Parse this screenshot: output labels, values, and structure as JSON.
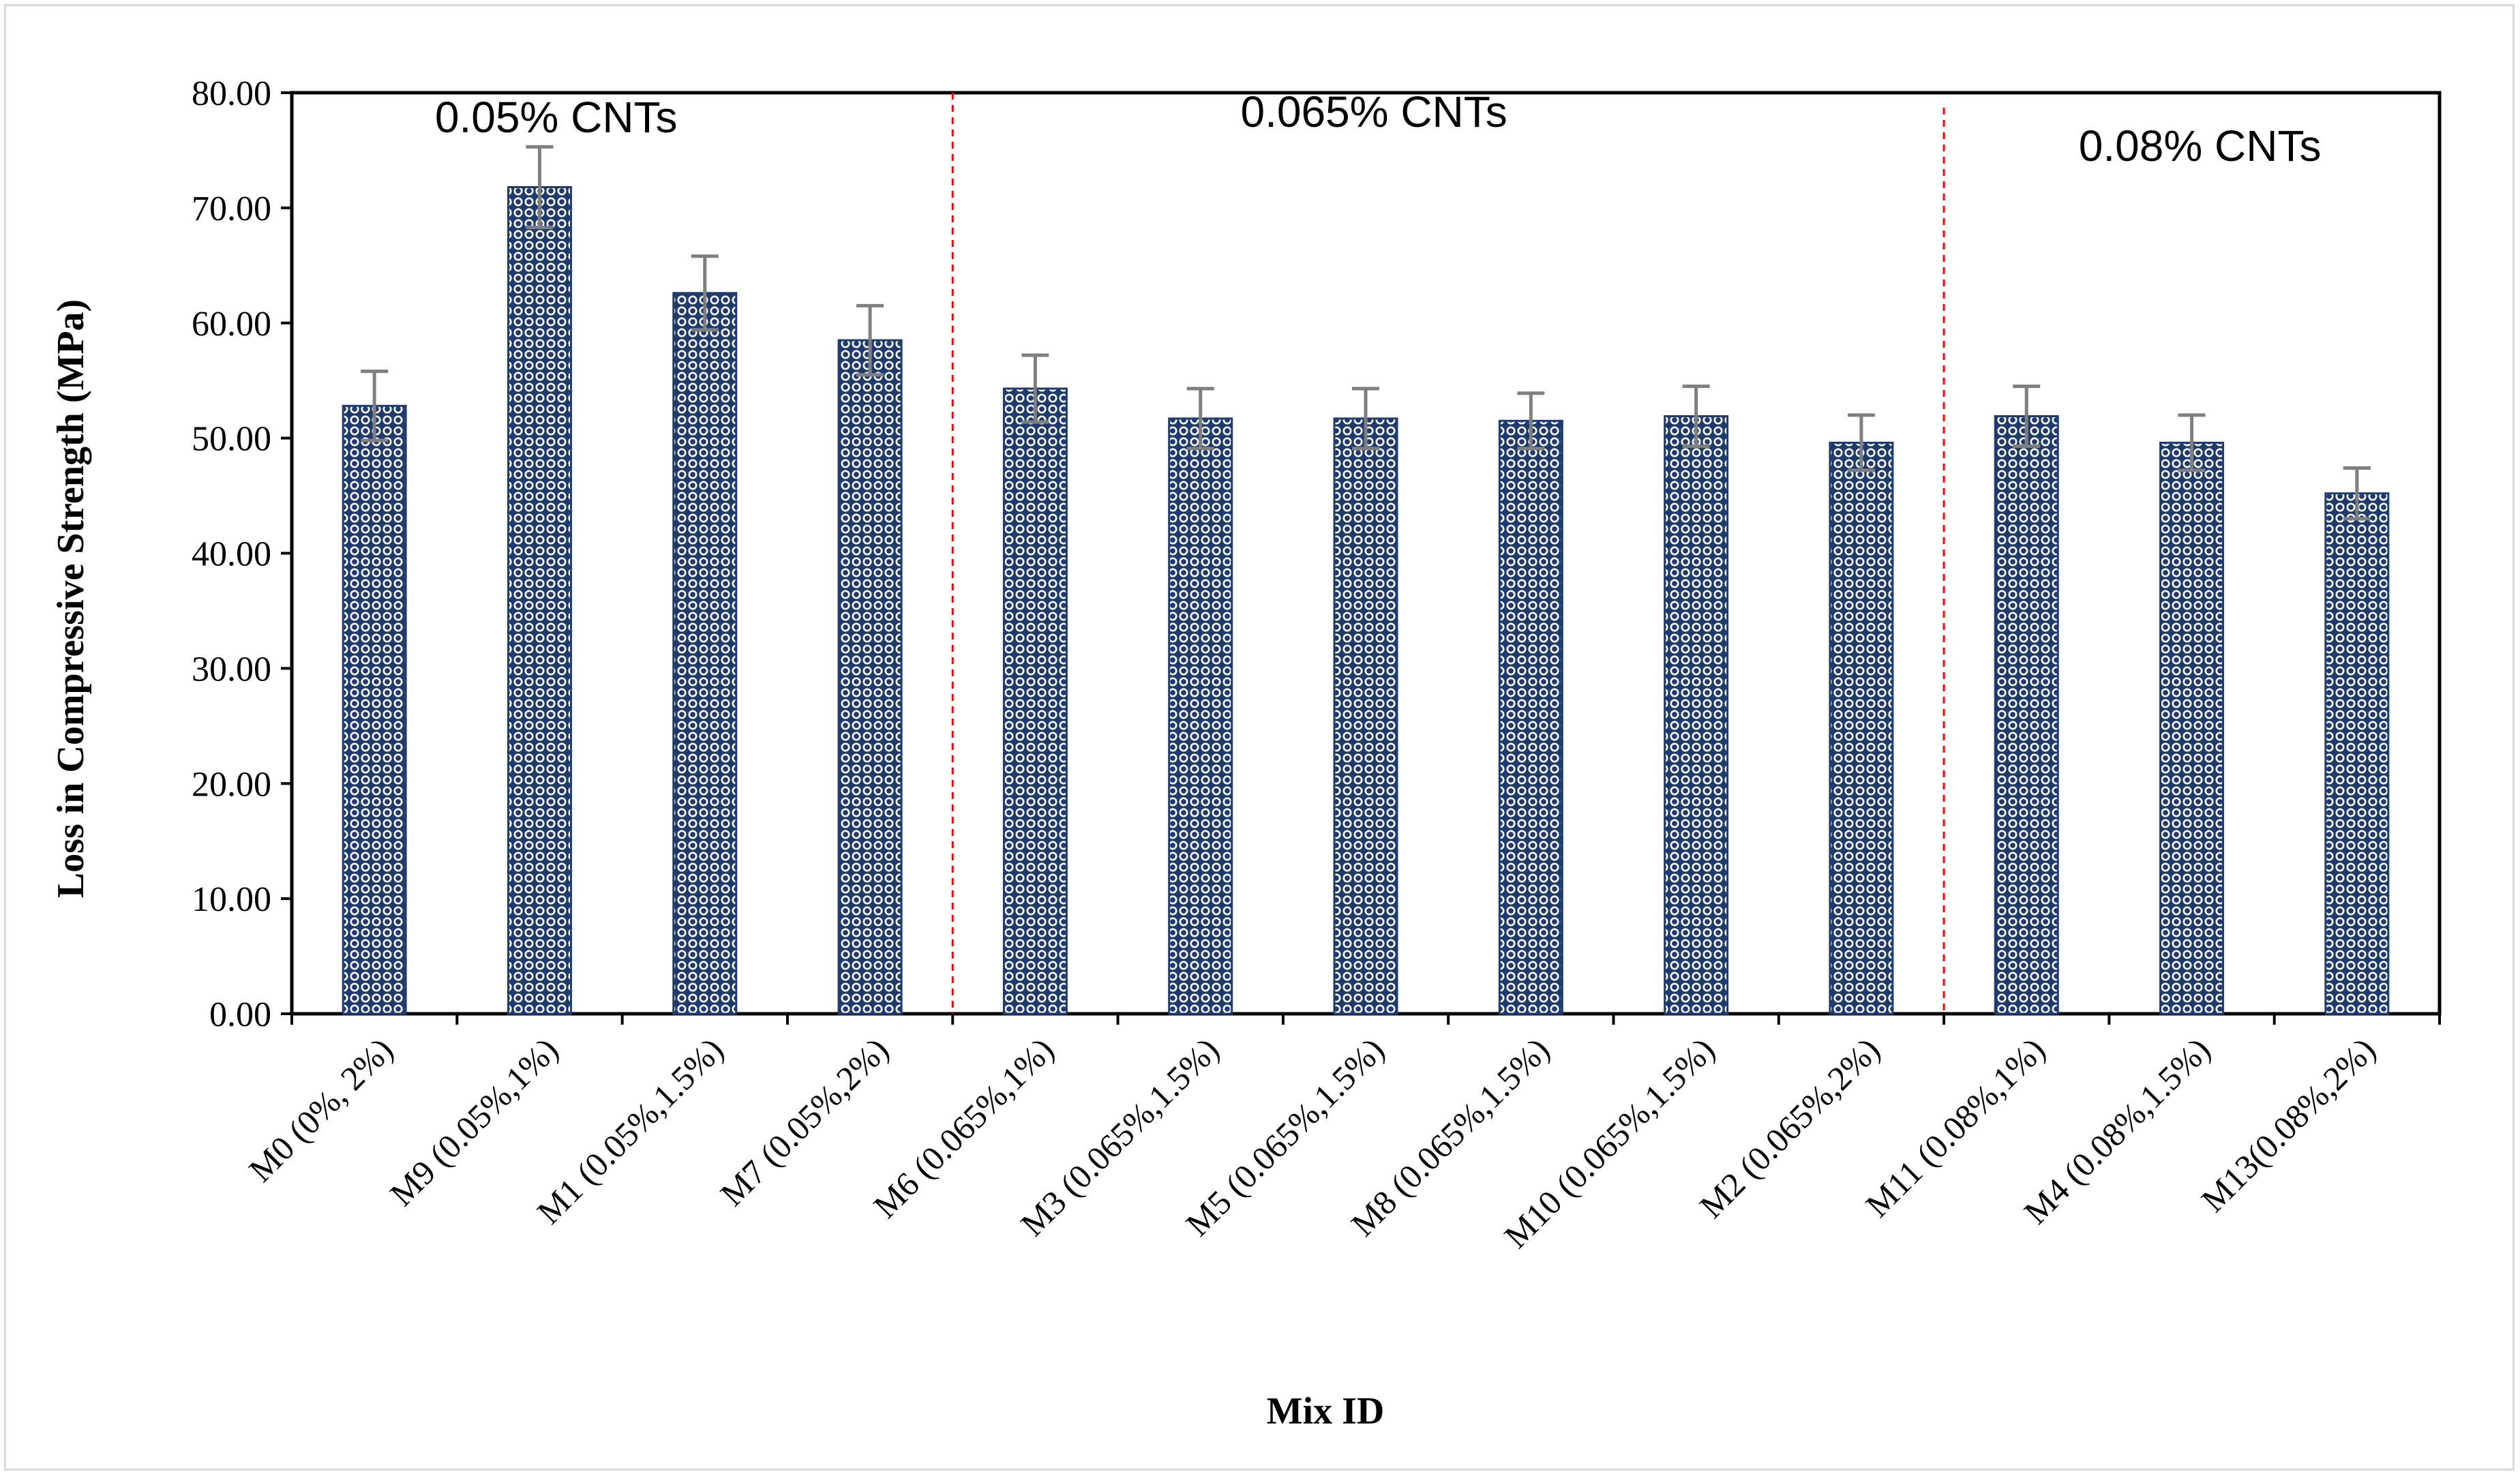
{
  "chart_data": {
    "type": "bar",
    "title": "",
    "xlabel": "Mix ID",
    "ylabel": "Loss in Compressive Strength (MPa)",
    "ylim": [
      0,
      80
    ],
    "yticks": [
      "0.00",
      "10.00",
      "20.00",
      "30.00",
      "40.00",
      "50.00",
      "60.00",
      "70.00",
      "80.00"
    ],
    "categories": [
      "M0 (0%, 2%)",
      "M9 (0.05%,1%)",
      "M1 (0.05%,1.5%)",
      "M7 (0.05%,2%)",
      "M6 (0.065%,1%)",
      "M3 (0.065%,1.5%)",
      "M5 (0.065%,1.5%)",
      "M8 (0.065%,1.5%)",
      "M10 (0.065%,1.5%)",
      "M2 (0.065%,2%)",
      "M11 (0.08%,1%)",
      "M4 (0.08%,1.5%)",
      "M13(0.08%,2%)"
    ],
    "values": [
      52.8,
      71.8,
      62.6,
      58.5,
      54.3,
      51.7,
      51.7,
      51.5,
      51.9,
      49.6,
      51.9,
      49.6,
      45.2
    ],
    "errors": [
      3.0,
      3.5,
      3.2,
      3.0,
      2.9,
      2.6,
      2.6,
      2.4,
      2.6,
      2.4,
      2.6,
      2.4,
      2.2
    ],
    "group_labels": [
      "0.05% CNTs",
      "0.065% CNTs",
      "0.08% CNTs"
    ],
    "group_dividers_after_index": [
      3,
      9
    ],
    "colors": {
      "bar_fill": "#1f3c6e",
      "bar_dots": "#ffffff",
      "error_bar": "#7f7f7f",
      "divider": "#ff0000",
      "axis": "#000000"
    }
  }
}
